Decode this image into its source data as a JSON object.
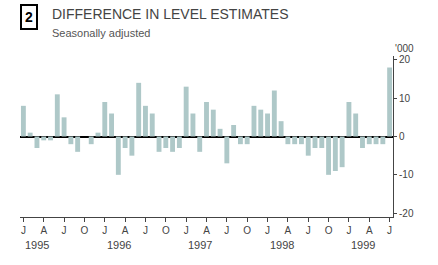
{
  "chart_data": {
    "type": "bar",
    "title": "DIFFERENCE IN LEVEL ESTIMATES",
    "subtitle": "Seasonally adjusted",
    "ylabel": "'000",
    "categories": [
      "J",
      null,
      null,
      "A",
      null,
      null,
      "J",
      null,
      null,
      "O",
      null,
      null,
      "J",
      null,
      null,
      "A",
      null,
      null,
      "J",
      null,
      null,
      "O",
      null,
      null,
      "J",
      null,
      null,
      "A",
      null,
      null,
      "J",
      null,
      null,
      "O",
      null,
      null,
      "J",
      null,
      null,
      "A",
      null,
      null,
      "J",
      null,
      null,
      "O",
      null,
      null,
      "J",
      null,
      null,
      "A",
      null,
      null,
      "J"
    ],
    "values": [
      8,
      1,
      -3,
      -1,
      -1,
      11,
      5,
      -2,
      -4,
      0,
      -2,
      1,
      9,
      6,
      -10,
      -3,
      -5,
      14,
      8,
      6,
      -4,
      -3,
      -4,
      -3,
      13,
      6,
      -4,
      9,
      7,
      2,
      -7,
      3,
      -2,
      -2,
      8,
      7,
      6,
      12,
      4,
      -2,
      -2,
      -2,
      -5,
      -3,
      -3,
      -10,
      -9,
      -8,
      9,
      6,
      -3,
      -2,
      -2,
      -2,
      18
    ],
    "color": "#aec8c8",
    "ylim": [
      -21,
      21
    ],
    "yticks": [
      -20,
      -10,
      0,
      10,
      20
    ],
    "grid": false,
    "annotations": [
      {
        "text": "2"
      },
      {
        "text": "1995",
        "x": 0
      },
      {
        "text": "1996",
        "x": 12
      },
      {
        "text": "1997",
        "x": 24
      },
      {
        "text": "1998",
        "x": 36
      },
      {
        "text": "1999",
        "x": 48
      }
    ]
  }
}
